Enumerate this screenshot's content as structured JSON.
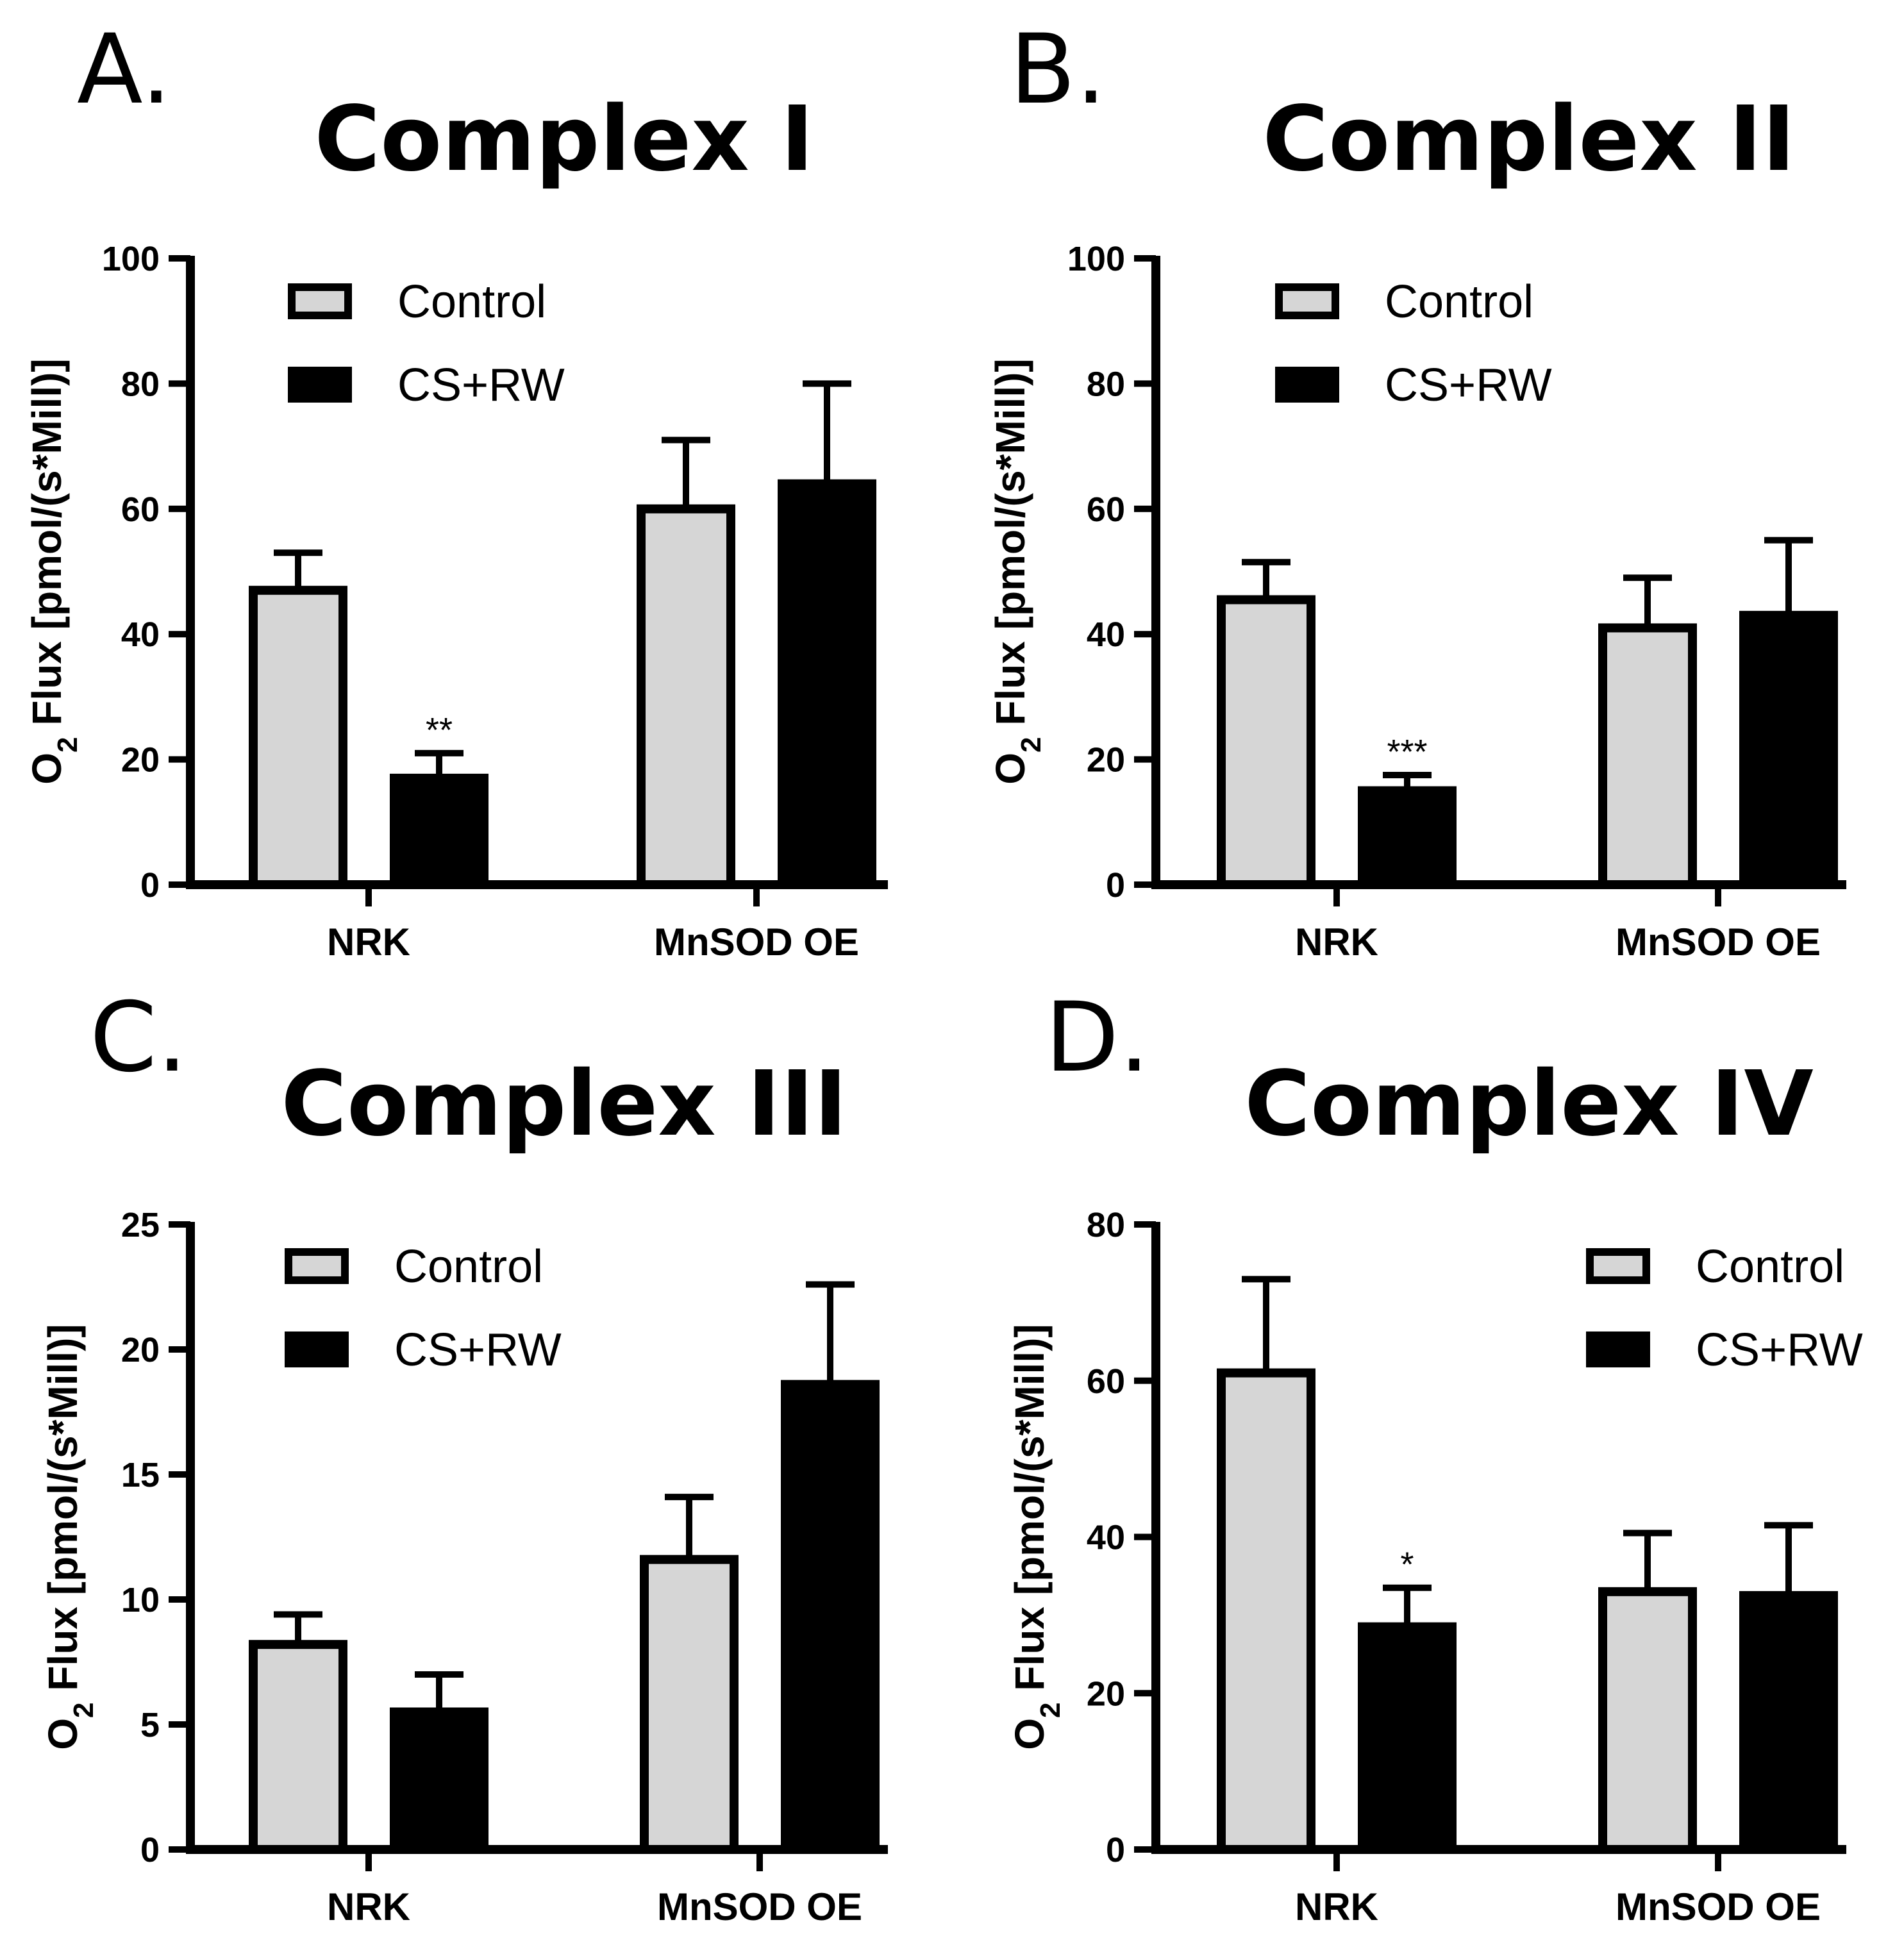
{
  "colors": {
    "control": "#d6d6d6",
    "treatment": "#000000",
    "stroke": "#000000"
  },
  "chart_data": [
    {
      "panel": "A.",
      "type": "bar",
      "title": "Complex I",
      "ylabel": "O2 Flux [pmol/(s*Mill)]",
      "ylabel_main": "O",
      "ylabel_sub": "2",
      "ylabel_rest": " Flux [pmol/(s*Mill)]",
      "ylim": [
        0,
        100
      ],
      "yticks": [
        0,
        20,
        40,
        60,
        80,
        100
      ],
      "categories": [
        "NRK",
        "MnSOD OE"
      ],
      "legend": {
        "position": "top-left"
      },
      "series": [
        {
          "name": "Control",
          "values": [
            47,
            60
          ],
          "errors": [
            6,
            11
          ]
        },
        {
          "name": "CS+RW",
          "values": [
            17,
            64
          ],
          "errors": [
            4,
            16
          ]
        }
      ],
      "annotations": [
        {
          "text": "**",
          "series": 1,
          "category": 0
        }
      ]
    },
    {
      "panel": "B.",
      "type": "bar",
      "title": "Complex II",
      "ylabel": "O2 Flux [pmol/(s*Mill)]",
      "ylabel_main": "O",
      "ylabel_sub": "2",
      "ylabel_rest": " Flux [pmol/(s*Mill)]",
      "ylim": [
        0,
        100
      ],
      "yticks": [
        0,
        20,
        40,
        60,
        80,
        100
      ],
      "categories": [
        "NRK",
        "MnSOD OE"
      ],
      "legend": {
        "position": "top-left"
      },
      "series": [
        {
          "name": "Control",
          "values": [
            45.5,
            41
          ],
          "errors": [
            6,
            8
          ]
        },
        {
          "name": "CS+RW",
          "values": [
            15,
            43
          ],
          "errors": [
            2.5,
            12
          ]
        }
      ],
      "annotations": [
        {
          "text": "***",
          "series": 1,
          "category": 0
        }
      ]
    },
    {
      "panel": "C.",
      "type": "bar",
      "title": "Complex III",
      "ylabel": "O2 Flux [pmol/(s*Mill)]",
      "ylabel_main": "O",
      "ylabel_sub": "2",
      "ylabel_rest": " Flux [pmol/(s*Mill)]",
      "ylim": [
        0,
        25
      ],
      "yticks": [
        0,
        5,
        10,
        15,
        20,
        25
      ],
      "categories": [
        "NRK",
        "MnSOD OE"
      ],
      "legend": {
        "position": "top-left"
      },
      "series": [
        {
          "name": "Control",
          "values": [
            8.2,
            11.6
          ],
          "errors": [
            1.2,
            2.5
          ]
        },
        {
          "name": "CS+RW",
          "values": [
            5.5,
            18.6
          ],
          "errors": [
            1.5,
            4
          ]
        }
      ],
      "annotations": []
    },
    {
      "panel": "D.",
      "type": "bar",
      "title": "Complex IV",
      "ylabel": "O2 Flux [pmol/(s*Mill)]",
      "ylabel_main": "O",
      "ylabel_sub": "2",
      "ylabel_rest": " Flux [pmol/(s*Mill)]",
      "ylim": [
        0,
        80
      ],
      "yticks": [
        0,
        20,
        40,
        60,
        80
      ],
      "categories": [
        "NRK",
        "MnSOD OE"
      ],
      "legend": {
        "position": "top-right"
      },
      "series": [
        {
          "name": "Control",
          "values": [
            61,
            33
          ],
          "errors": [
            12,
            7.5
          ]
        },
        {
          "name": "CS+RW",
          "values": [
            28.5,
            32.5
          ],
          "errors": [
            5,
            9
          ]
        }
      ],
      "annotations": [
        {
          "text": "*",
          "series": 1,
          "category": 0
        }
      ]
    }
  ]
}
